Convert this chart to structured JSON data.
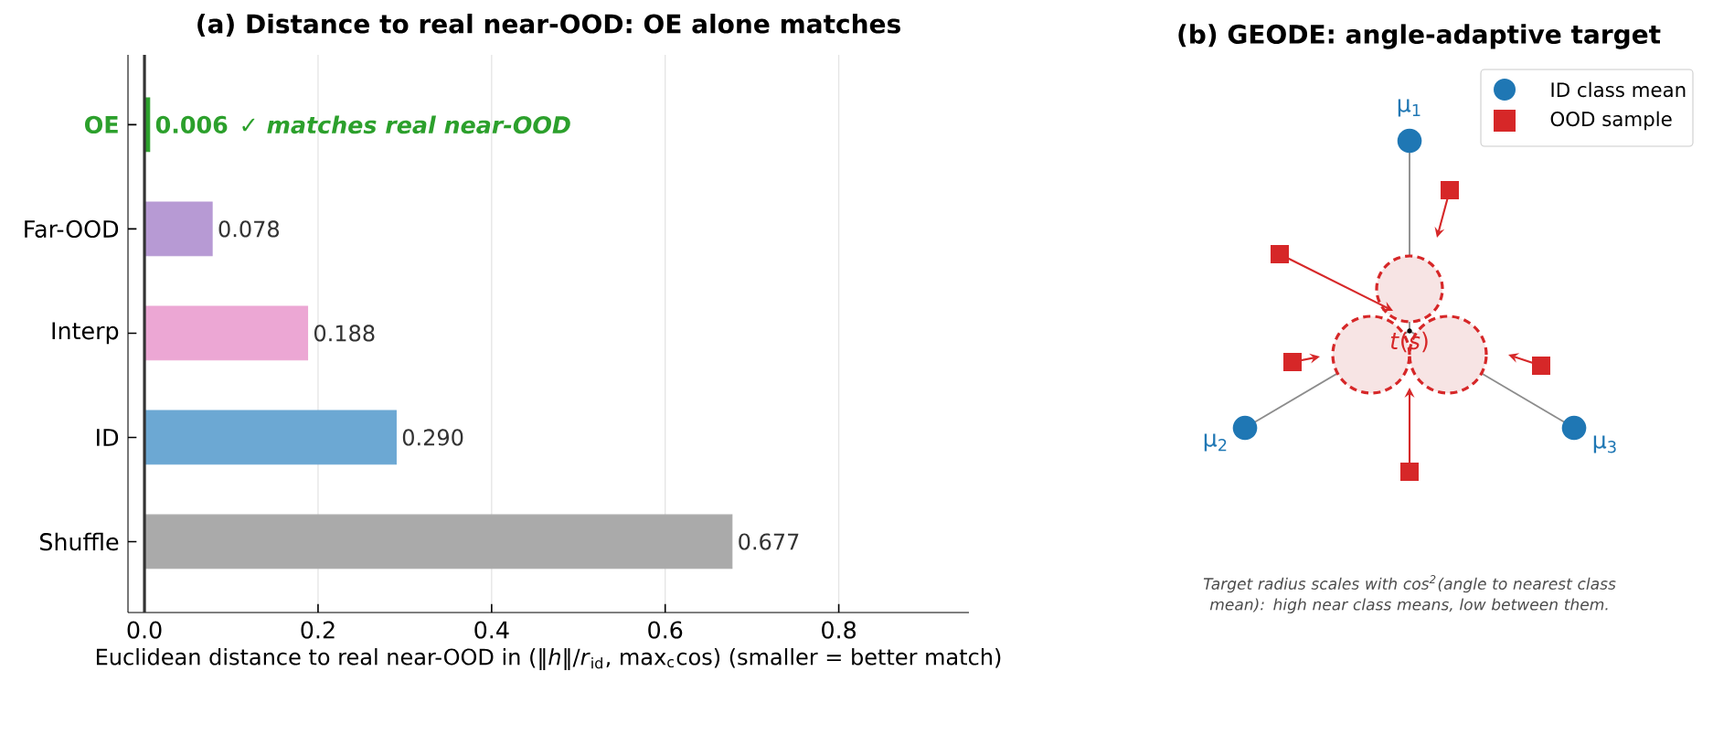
{
  "chart_data": [
    {
      "type": "bar",
      "orientation": "horizontal",
      "title": "(a) Distance to real near-OOD: OE alone matches",
      "xlabel": "Euclidean distance to real near-OOD in (‖*h*‖/*r*$_{id}$, max$_{c}$cos)  (smaller = better match)",
      "categories": [
        "OE",
        "Far-OOD",
        "Interp",
        "ID",
        "Shuffle"
      ],
      "values": [
        0.006,
        0.078,
        0.188,
        0.29,
        0.677
      ],
      "colors": [
        "#2ca02c",
        "#b79ad4",
        "#eca7d4",
        "#6ca8d3",
        "#aaaaaa"
      ],
      "value_labels": [
        "0.006",
        "0.078",
        "0.188",
        "0.290",
        "0.677"
      ],
      "annotations": [
        "✓ matches real near-OOD"
      ],
      "xlim": [
        -0.019,
        0.95
      ],
      "xticks": [
        {
          "value": 0,
          "label": "0.0"
        },
        {
          "value": 0.2,
          "label": "0.2"
        },
        {
          "value": 0.4,
          "label": "0.4"
        },
        {
          "value": 0.6,
          "label": "0.6"
        },
        {
          "value": 0.8,
          "label": "0.8"
        }
      ],
      "ref_lines": [
        {
          "axis": "x",
          "value": 0,
          "color": "#333333"
        }
      ],
      "grid": "x"
    },
    {
      "type": "other",
      "title": "(b) GEODE: angle-adaptive target",
      "annotations": [
        "μ$_{1}$",
        "μ$_{2}$",
        "μ$_{3}$",
        "*t*(*s*)",
        "ID class mean",
        "OOD sample",
        "Target radius scales with cos$^{2}$(angle to nearest class mean): high near class means, low between them."
      ]
    }
  ]
}
